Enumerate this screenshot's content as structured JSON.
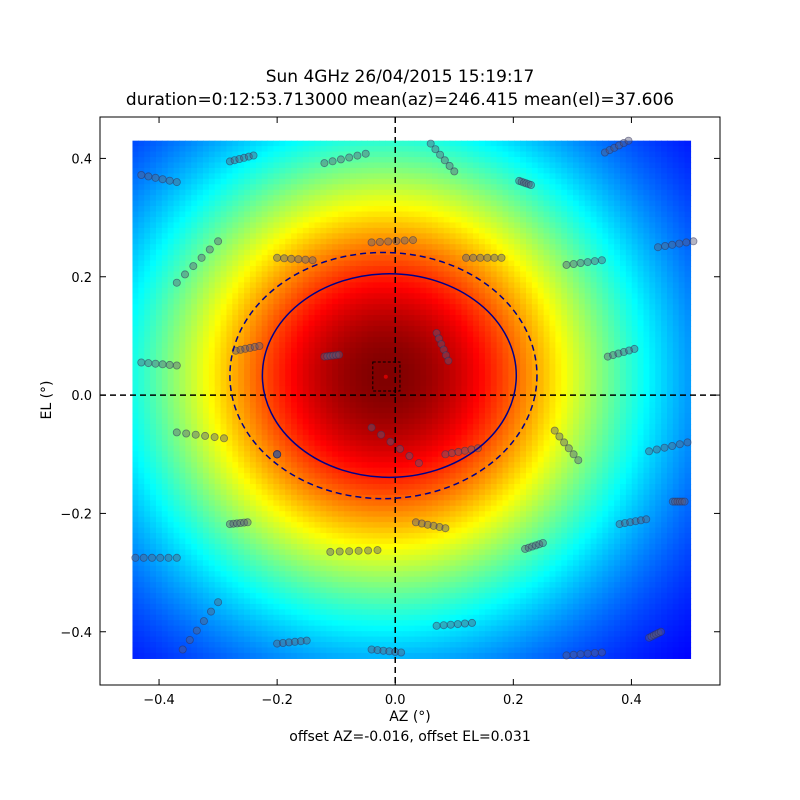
{
  "chart_data": {
    "type": "heatmap",
    "title": "Sun 4GHz 26/04/2015 15:19:17",
    "subtitle": "duration=0:12:53.713000 mean(az)=246.415 mean(el)=37.606",
    "xlabel": "AZ (°)",
    "ylabel": "EL (°)",
    "footer": "offset AZ=-0.016, offset EL=0.031",
    "xlim": [
      -0.5,
      0.55
    ],
    "ylim": [
      -0.49,
      0.47
    ],
    "xticks": [
      "−0.4",
      "−0.2",
      "0.0",
      "0.2",
      "0.4"
    ],
    "xtick_values": [
      -0.4,
      -0.2,
      0.0,
      0.2,
      0.4
    ],
    "yticks": [
      "−0.4",
      "−0.2",
      "0.0",
      "0.2",
      "0.4"
    ],
    "ytick_values": [
      -0.4,
      -0.2,
      0.0,
      0.2,
      0.4
    ],
    "heatmap_extent": {
      "x": [
        -0.445,
        0.5
      ],
      "y": [
        -0.445,
        0.43
      ]
    },
    "beam_center": {
      "az": -0.016,
      "el": 0.031
    },
    "beam_radius_scale": {
      "az": 0.49,
      "el": 0.47
    },
    "colormap": "jet",
    "contours": [
      {
        "style": "solid",
        "cx": -0.01,
        "cy": 0.033,
        "rx": 0.215,
        "ry": 0.172,
        "color": "#00008b"
      },
      {
        "style": "dashed",
        "cx": -0.02,
        "cy": 0.033,
        "rx": 0.26,
        "ry": 0.208,
        "color": "#00008b"
      }
    ],
    "center_box": {
      "x": [
        -0.038,
        0.008
      ],
      "y": [
        0.007,
        0.056
      ]
    },
    "center_point": {
      "x": -0.016,
      "y": 0.031
    },
    "crosshair": {
      "x": 0.0,
      "y": 0.0
    },
    "scan_segments": [
      [
        [
          -0.43,
          0.372
        ],
        [
          -0.37,
          0.36
        ]
      ],
      [
        [
          -0.28,
          0.395
        ],
        [
          -0.24,
          0.405
        ]
      ],
      [
        [
          -0.12,
          0.392
        ],
        [
          -0.05,
          0.408
        ]
      ],
      [
        [
          0.06,
          0.425
        ],
        [
          0.1,
          0.378
        ]
      ],
      [
        [
          0.21,
          0.362
        ],
        [
          0.23,
          0.355
        ]
      ],
      [
        [
          0.355,
          0.41
        ],
        [
          0.395,
          0.43
        ]
      ],
      [
        [
          -0.37,
          0.19
        ],
        [
          -0.3,
          0.26
        ]
      ],
      [
        [
          -0.04,
          0.258
        ],
        [
          0.03,
          0.262
        ]
      ],
      [
        [
          -0.2,
          0.232
        ],
        [
          -0.14,
          0.228
        ]
      ],
      [
        [
          0.12,
          0.232
        ],
        [
          0.18,
          0.232
        ]
      ],
      [
        [
          0.29,
          0.22
        ],
        [
          0.35,
          0.228
        ]
      ],
      [
        [
          0.445,
          0.25
        ],
        [
          0.505,
          0.26
        ]
      ],
      [
        [
          -0.43,
          0.055
        ],
        [
          -0.37,
          0.05
        ]
      ],
      [
        [
          -0.27,
          0.075
        ],
        [
          -0.23,
          0.083
        ]
      ],
      [
        [
          -0.12,
          0.065
        ],
        [
          -0.095,
          0.068
        ]
      ],
      [
        [
          0.07,
          0.105
        ],
        [
          0.09,
          0.058
        ]
      ],
      [
        [
          0.36,
          0.065
        ],
        [
          0.405,
          0.078
        ]
      ],
      [
        [
          -0.37,
          -0.063
        ],
        [
          -0.29,
          -0.073
        ]
      ],
      [
        [
          -0.2,
          -0.1
        ],
        [
          -0.2,
          -0.1
        ]
      ],
      [
        [
          -0.04,
          -0.055
        ],
        [
          0.04,
          -0.115
        ]
      ],
      [
        [
          0.085,
          -0.1
        ],
        [
          0.14,
          -0.09
        ]
      ],
      [
        [
          0.27,
          -0.06
        ],
        [
          0.31,
          -0.11
        ]
      ],
      [
        [
          0.43,
          -0.095
        ],
        [
          0.495,
          -0.08
        ]
      ],
      [
        [
          -0.28,
          -0.218
        ],
        [
          -0.25,
          -0.215
        ]
      ],
      [
        [
          0.035,
          -0.215
        ],
        [
          0.085,
          -0.225
        ]
      ],
      [
        [
          0.22,
          -0.26
        ],
        [
          0.25,
          -0.25
        ]
      ],
      [
        [
          0.38,
          -0.218
        ],
        [
          0.425,
          -0.21
        ]
      ],
      [
        [
          0.47,
          -0.18
        ],
        [
          0.49,
          -0.18
        ]
      ],
      [
        [
          -0.44,
          -0.275
        ],
        [
          -0.37,
          -0.275
        ]
      ],
      [
        [
          -0.11,
          -0.265
        ],
        [
          -0.03,
          -0.262
        ]
      ],
      [
        [
          -0.36,
          -0.43
        ],
        [
          -0.3,
          -0.35
        ]
      ],
      [
        [
          -0.2,
          -0.42
        ],
        [
          -0.15,
          -0.415
        ]
      ],
      [
        [
          -0.04,
          -0.43
        ],
        [
          0.01,
          -0.435
        ]
      ],
      [
        [
          0.07,
          -0.39
        ],
        [
          0.13,
          -0.385
        ]
      ],
      [
        [
          0.29,
          -0.44
        ],
        [
          0.35,
          -0.435
        ]
      ],
      [
        [
          0.43,
          -0.41
        ],
        [
          0.45,
          -0.4
        ]
      ]
    ]
  }
}
